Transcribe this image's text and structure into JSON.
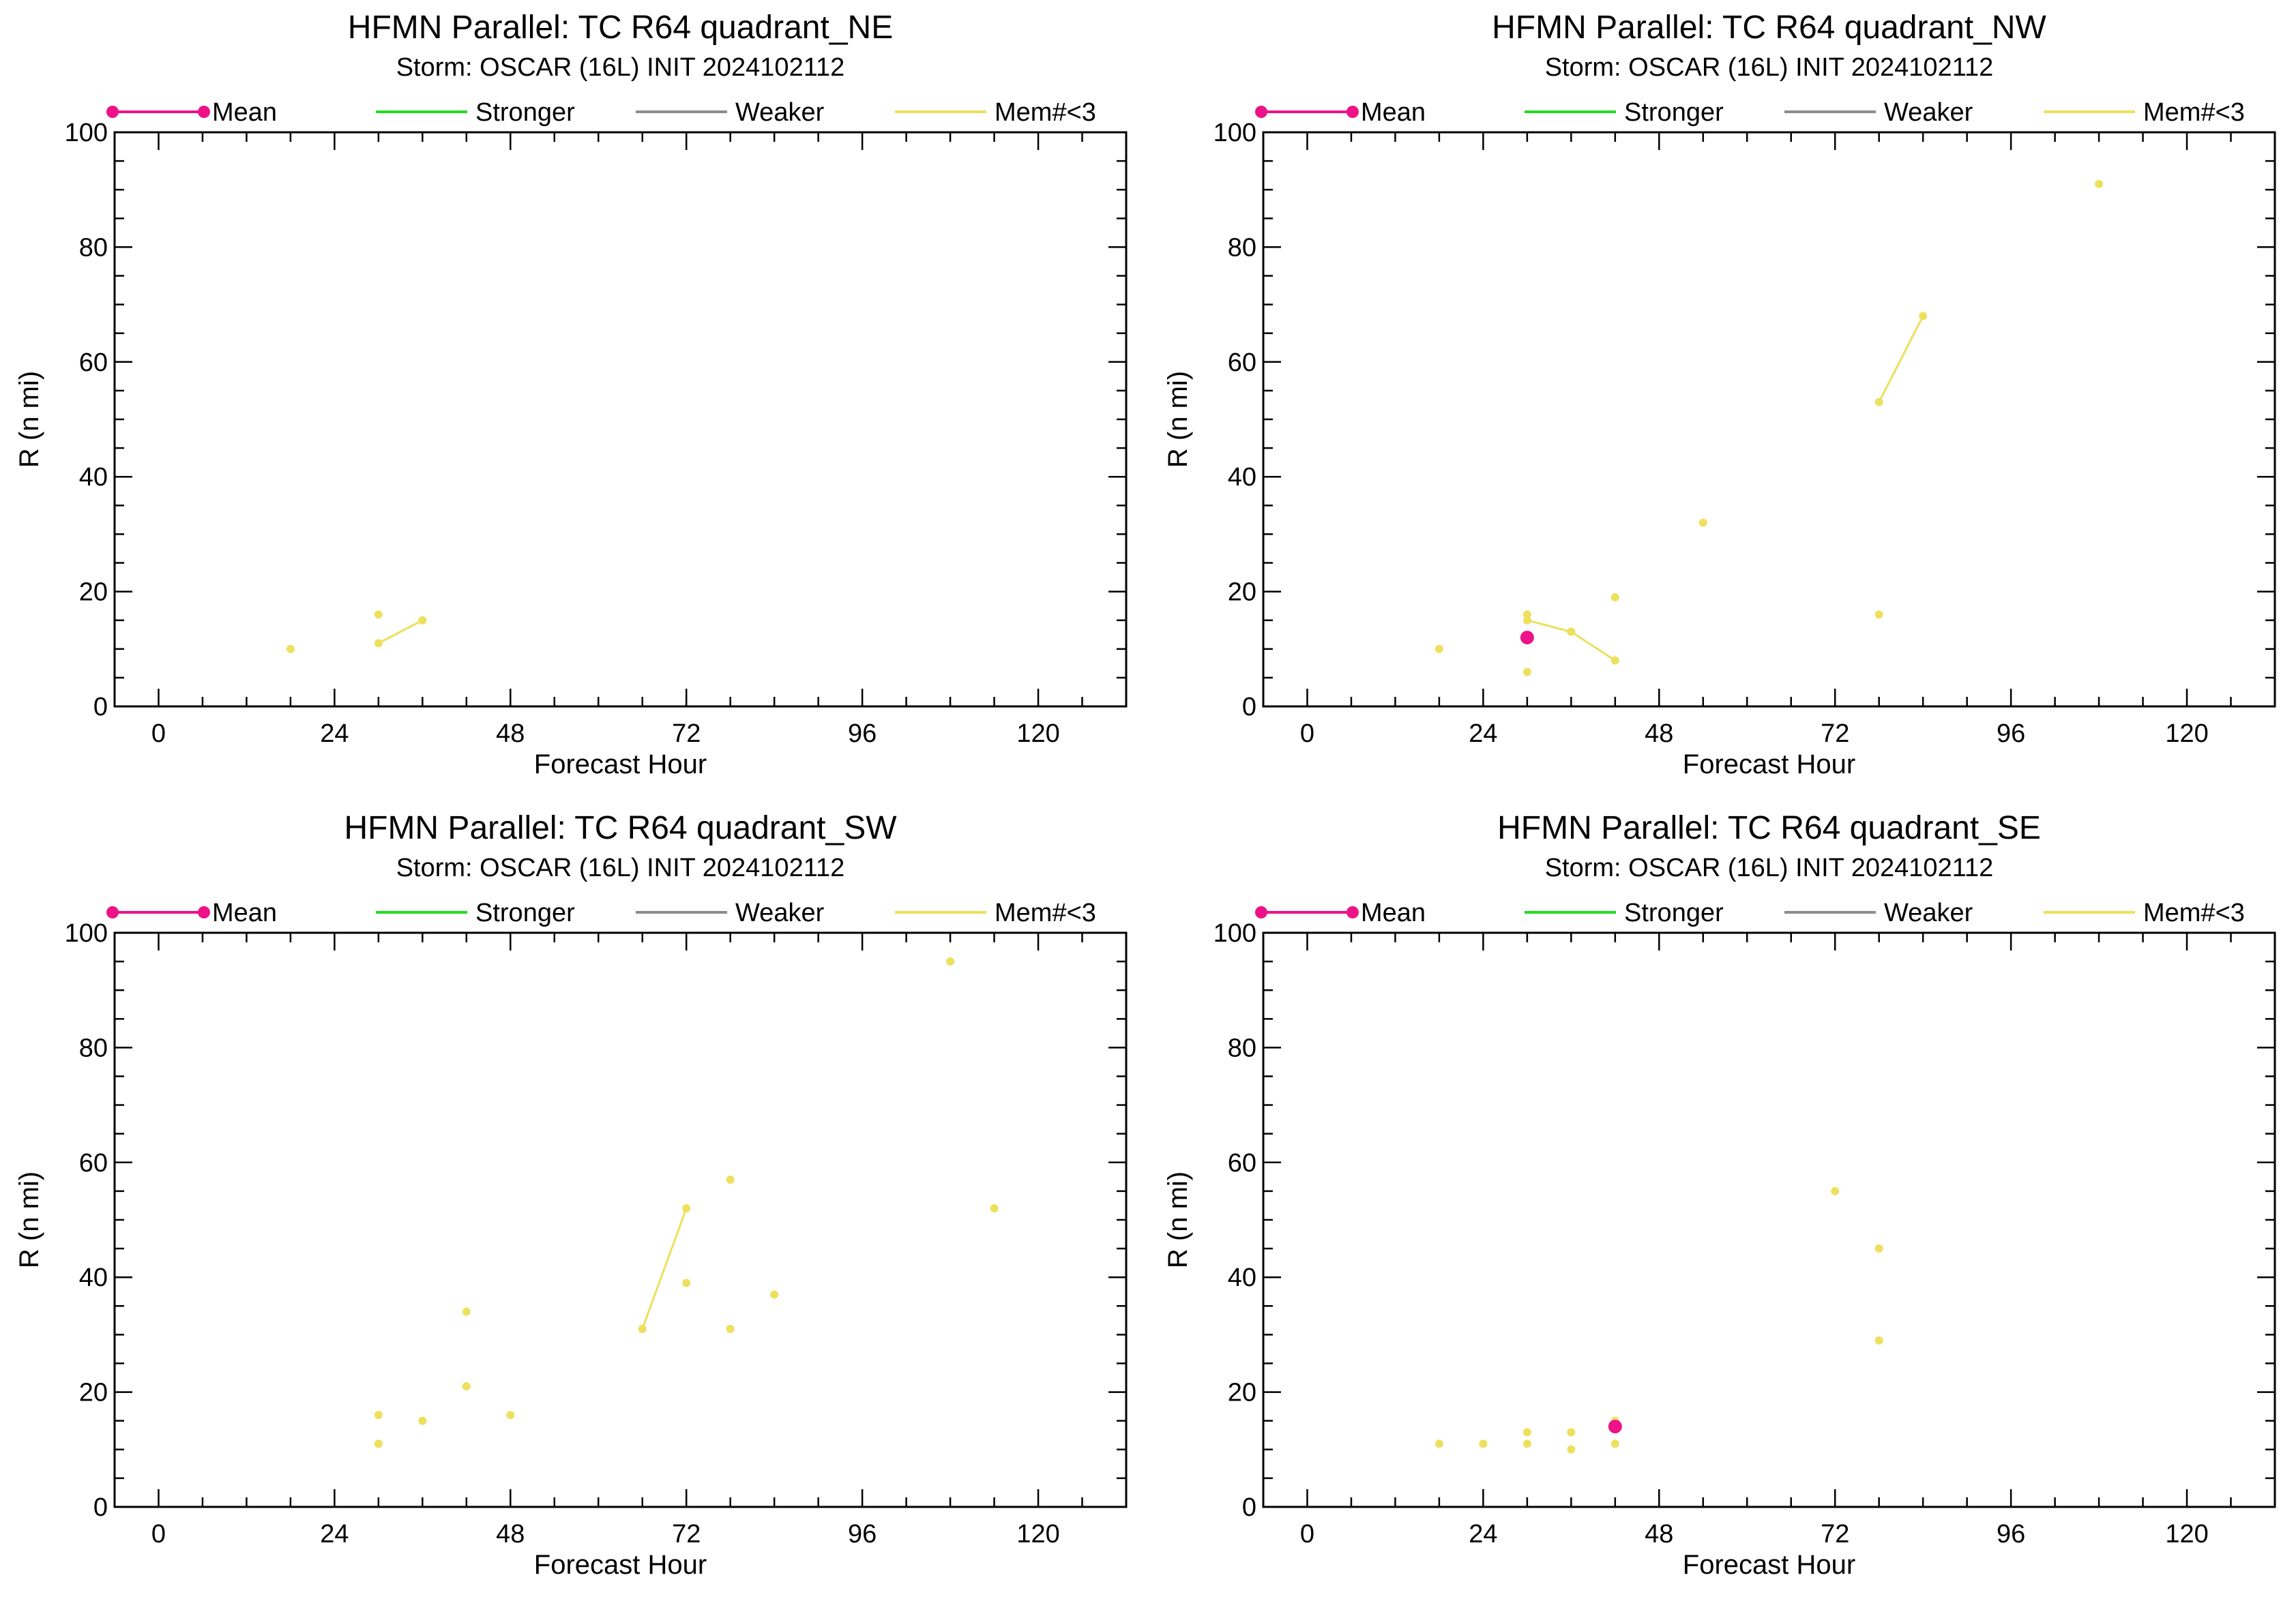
{
  "colors": {
    "mean": "#ee1289",
    "stronger": "#22dd22",
    "weaker": "#8c8c8c",
    "few_members": "#ede05c"
  },
  "legend": {
    "mean": "Mean",
    "stronger": "Stronger",
    "weaker": "Weaker",
    "few_members": "Mem#<3"
  },
  "chart_data": [
    {
      "type": "line",
      "title": "HFMN Parallel: TC  R64 quadrant_NE",
      "subtitle": "Storm: OSCAR (16L) INIT 2024102112",
      "xlabel": "Forecast Hour",
      "ylabel": "R (n mi)",
      "xlim": [
        -6,
        132
      ],
      "ylim": [
        0,
        100
      ],
      "xticks": [
        0,
        24,
        48,
        72,
        96,
        120
      ],
      "yticks": [
        0,
        20,
        40,
        60,
        80,
        100
      ],
      "legend_position": "top",
      "mean": [],
      "few_member_segments": [
        [
          [
            18,
            10
          ]
        ],
        [
          [
            30,
            16
          ]
        ],
        [
          [
            30,
            11
          ],
          [
            36,
            15
          ]
        ]
      ]
    },
    {
      "type": "line",
      "title": "HFMN Parallel: TC  R64 quadrant_NW",
      "subtitle": "Storm: OSCAR (16L) INIT 2024102112",
      "xlabel": "Forecast Hour",
      "ylabel": "R (n mi)",
      "xlim": [
        -6,
        132
      ],
      "ylim": [
        0,
        100
      ],
      "xticks": [
        0,
        24,
        48,
        72,
        96,
        120
      ],
      "yticks": [
        0,
        20,
        40,
        60,
        80,
        100
      ],
      "legend_position": "top",
      "mean": [
        [
          30,
          12
        ]
      ],
      "few_member_segments": [
        [
          [
            18,
            10
          ]
        ],
        [
          [
            30,
            16
          ]
        ],
        [
          [
            30,
            15
          ],
          [
            36,
            13
          ],
          [
            42,
            8
          ]
        ],
        [
          [
            30,
            6
          ]
        ],
        [
          [
            42,
            19
          ]
        ],
        [
          [
            54,
            32
          ]
        ],
        [
          [
            78,
            53
          ],
          [
            84,
            68
          ]
        ],
        [
          [
            78,
            16
          ]
        ],
        [
          [
            108,
            91
          ]
        ]
      ]
    },
    {
      "type": "line",
      "title": "HFMN Parallel: TC  R64 quadrant_SW",
      "subtitle": "Storm: OSCAR (16L) INIT 2024102112",
      "xlabel": "Forecast Hour",
      "ylabel": "R (n mi)",
      "xlim": [
        -6,
        132
      ],
      "ylim": [
        0,
        100
      ],
      "xticks": [
        0,
        24,
        48,
        72,
        96,
        120
      ],
      "yticks": [
        0,
        20,
        40,
        60,
        80,
        100
      ],
      "legend_position": "top",
      "mean": [],
      "few_member_segments": [
        [
          [
            30,
            16
          ]
        ],
        [
          [
            30,
            11
          ]
        ],
        [
          [
            36,
            15
          ]
        ],
        [
          [
            42,
            34
          ]
        ],
        [
          [
            42,
            21
          ]
        ],
        [
          [
            48,
            16
          ]
        ],
        [
          [
            66,
            31
          ],
          [
            72,
            52
          ]
        ],
        [
          [
            72,
            39
          ]
        ],
        [
          [
            78,
            57
          ]
        ],
        [
          [
            78,
            31
          ]
        ],
        [
          [
            84,
            37
          ]
        ],
        [
          [
            108,
            95
          ]
        ],
        [
          [
            114,
            52
          ]
        ]
      ]
    },
    {
      "type": "line",
      "title": "HFMN Parallel: TC  R64 quadrant_SE",
      "subtitle": "Storm: OSCAR (16L) INIT 2024102112",
      "xlabel": "Forecast Hour",
      "ylabel": "R (n mi)",
      "xlim": [
        -6,
        132
      ],
      "ylim": [
        0,
        100
      ],
      "xticks": [
        0,
        24,
        48,
        72,
        96,
        120
      ],
      "yticks": [
        0,
        20,
        40,
        60,
        80,
        100
      ],
      "legend_position": "top",
      "mean": [
        [
          42,
          14
        ]
      ],
      "few_member_segments": [
        [
          [
            18,
            11
          ]
        ],
        [
          [
            24,
            11
          ]
        ],
        [
          [
            30,
            13
          ]
        ],
        [
          [
            30,
            11
          ]
        ],
        [
          [
            36,
            13
          ]
        ],
        [
          [
            36,
            10
          ]
        ],
        [
          [
            42,
            15
          ]
        ],
        [
          [
            42,
            11
          ]
        ],
        [
          [
            72,
            55
          ]
        ],
        [
          [
            78,
            45
          ]
        ],
        [
          [
            78,
            29
          ]
        ]
      ]
    }
  ]
}
